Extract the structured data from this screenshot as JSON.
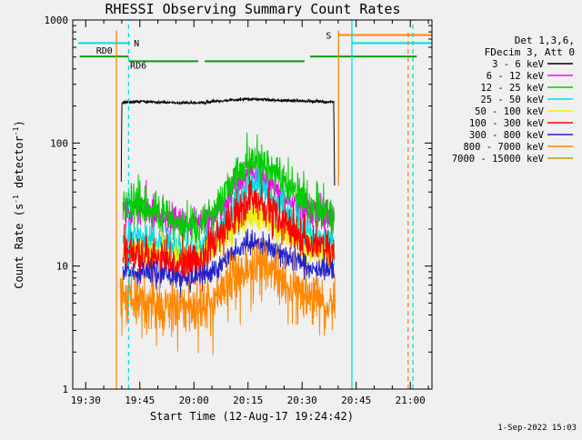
{
  "meta": {
    "background": "#f0f0f0"
  },
  "title": "RHESSI Observing Summary Count Rates",
  "timestamp": "1-Sep-2022 15:03",
  "legend": {
    "line1": "Det 1,3,6,",
    "line2": "FDecim 3, Att 0",
    "entries": [
      {
        "label": "3 - 6 keV",
        "color": "#000000"
      },
      {
        "label": "6 - 12 keV",
        "color": "#ff00ff"
      },
      {
        "label": "12 - 25 keV",
        "color": "#00cc00"
      },
      {
        "label": "25 - 50 keV",
        "color": "#00dede"
      },
      {
        "label": "50 - 100 keV",
        "color": "#efef00"
      },
      {
        "label": "100 - 300 keV",
        "color": "#ff0000"
      },
      {
        "label": "300 - 800 keV",
        "color": "#2222cc"
      },
      {
        "label": "800 - 7000 keV",
        "color": "#ff8800"
      },
      {
        "label": "7000 - 15000 keV",
        "color": "#b5a000"
      }
    ]
  },
  "chart_data": {
    "type": "line",
    "title": "RHESSI Observing Summary Count Rates",
    "xlabel": "Start Time (12-Aug-17 19:24:42)",
    "ylabel": {
      "text": "Count Rate (s-1 detector-1)",
      "pre": "Count Rate (s",
      "sup1": "-1",
      "mid": " detector",
      "sup2": "-1",
      "post": ")"
    },
    "x_hours_range": [
      19.44,
      21.1
    ],
    "x_ticks": [
      {
        "h": 19.5,
        "label": "19:30"
      },
      {
        "h": 19.75,
        "label": "19:45"
      },
      {
        "h": 20.0,
        "label": "20:00"
      },
      {
        "h": 20.25,
        "label": "20:15"
      },
      {
        "h": 20.5,
        "label": "20:30"
      },
      {
        "h": 20.75,
        "label": "20:45"
      },
      {
        "h": 21.0,
        "label": "21:00"
      }
    ],
    "x_minor_step_minutes": 5,
    "y_log_range": [
      1,
      1000
    ],
    "y_ticks": [
      1,
      10,
      100,
      1000
    ],
    "grid": false,
    "legend_position": "right-outside",
    "series": [
      {
        "name": "3 - 6 keV",
        "color": "#000000",
        "sigma": 0.006,
        "points": [
          [
            19.664,
            48
          ],
          [
            19.667,
            212
          ],
          [
            19.75,
            218
          ],
          [
            19.85,
            214
          ],
          [
            19.95,
            212
          ],
          [
            20.05,
            214
          ],
          [
            20.15,
            222
          ],
          [
            20.25,
            228
          ],
          [
            20.35,
            224
          ],
          [
            20.45,
            221
          ],
          [
            20.55,
            218
          ],
          [
            20.646,
            215
          ],
          [
            20.65,
            46
          ]
        ]
      },
      {
        "name": "6 - 12 keV",
        "color": "#ff00ff",
        "sigma": 0.06,
        "points": [
          [
            19.672,
            27
          ],
          [
            19.75,
            29
          ],
          [
            19.85,
            25
          ],
          [
            19.95,
            22.5
          ],
          [
            20.02,
            22
          ],
          [
            20.1,
            26
          ],
          [
            20.2,
            45
          ],
          [
            20.27,
            58
          ],
          [
            20.33,
            50
          ],
          [
            20.42,
            36
          ],
          [
            20.52,
            29
          ],
          [
            20.6,
            26
          ],
          [
            20.648,
            25
          ]
        ]
      },
      {
        "name": "12 - 25 keV",
        "color": "#00cc00",
        "sigma": 0.085,
        "points": [
          [
            19.672,
            31
          ],
          [
            19.74,
            33
          ],
          [
            19.83,
            27
          ],
          [
            19.95,
            21.5
          ],
          [
            20.02,
            21
          ],
          [
            20.1,
            28
          ],
          [
            20.2,
            58
          ],
          [
            20.27,
            76
          ],
          [
            20.32,
            70
          ],
          [
            20.42,
            48
          ],
          [
            20.52,
            33
          ],
          [
            20.6,
            27
          ],
          [
            20.648,
            25
          ]
        ]
      },
      {
        "name": "25 - 50 keV",
        "color": "#00dede",
        "sigma": 0.07,
        "points": [
          [
            19.672,
            17
          ],
          [
            19.76,
            16.5
          ],
          [
            19.88,
            14.5
          ],
          [
            19.99,
            13.5
          ],
          [
            20.08,
            15.5
          ],
          [
            20.18,
            28
          ],
          [
            20.27,
            46
          ],
          [
            20.33,
            40
          ],
          [
            20.42,
            28
          ],
          [
            20.52,
            19
          ],
          [
            20.6,
            16
          ],
          [
            20.648,
            15
          ]
        ]
      },
      {
        "name": "50 - 100 keV",
        "color": "#efef00",
        "sigma": 0.06,
        "points": [
          [
            19.672,
            13.5
          ],
          [
            19.78,
            13
          ],
          [
            19.95,
            11.5
          ],
          [
            20.05,
            12.5
          ],
          [
            20.15,
            18
          ],
          [
            20.27,
            27
          ],
          [
            20.34,
            23
          ],
          [
            20.44,
            17
          ],
          [
            20.54,
            13.5
          ],
          [
            20.648,
            12.5
          ]
        ]
      },
      {
        "name": "100 - 300 keV",
        "color": "#ff0000",
        "sigma": 0.09,
        "points": [
          [
            19.672,
            13
          ],
          [
            19.78,
            12
          ],
          [
            19.95,
            10.5
          ],
          [
            20.05,
            12
          ],
          [
            20.15,
            21
          ],
          [
            20.27,
            36
          ],
          [
            20.34,
            30
          ],
          [
            20.44,
            20
          ],
          [
            20.54,
            14.5
          ],
          [
            20.648,
            13
          ]
        ]
      },
      {
        "name": "300 - 800 keV",
        "color": "#2222cc",
        "sigma": 0.05,
        "points": [
          [
            19.672,
            9
          ],
          [
            19.8,
            8.6
          ],
          [
            19.97,
            7.8
          ],
          [
            20.07,
            8.4
          ],
          [
            20.17,
            12
          ],
          [
            20.27,
            16.5
          ],
          [
            20.35,
            14.5
          ],
          [
            20.45,
            11.5
          ],
          [
            20.55,
            9.4
          ],
          [
            20.648,
            8.8
          ]
        ]
      },
      {
        "name": "800 - 7000 keV",
        "color": "#ff8800",
        "sigma": 0.11,
        "spike_p": 0.04,
        "spike_f": 0.55,
        "points": [
          [
            19.66,
            5.6
          ],
          [
            19.8,
            5.1
          ],
          [
            19.97,
            4.4
          ],
          [
            20.07,
            5.0
          ],
          [
            20.17,
            7.5
          ],
          [
            20.27,
            10.8
          ],
          [
            20.35,
            9.3
          ],
          [
            20.45,
            6.8
          ],
          [
            20.55,
            5.4
          ],
          [
            20.652,
            5.0
          ]
        ]
      },
      {
        "name": "7000 - 15000 keV",
        "color": "#b5a000",
        "sigma": 0.05,
        "points": []
      }
    ],
    "flags": [
      {
        "label": "N",
        "color": "#00dede",
        "value": 650,
        "segments": [
          [
            19.465,
            19.705
          ],
          [
            20.73,
            21.2
          ]
        ],
        "label_pos": [
          19.722,
          640
        ]
      },
      {
        "label": "S",
        "color": "#ff8800",
        "value": 755,
        "segments": [
          [
            20.668,
            21.2
          ]
        ],
        "label_pos": [
          20.61,
          745
        ]
      },
      {
        "label": "RD0",
        "color": "#119911",
        "value": 505,
        "segments": [
          [
            19.472,
            19.698
          ],
          [
            20.537,
            21.03
          ]
        ],
        "label_pos": [
          19.548,
          560
        ]
      },
      {
        "label": "RD6",
        "color": "#119911",
        "value": 462,
        "segments": [
          [
            19.698,
            20.02
          ],
          [
            20.05,
            20.511
          ]
        ],
        "label_pos": [
          19.705,
          425
        ]
      }
    ],
    "vlines": [
      {
        "t": 19.642,
        "color": "#ff8800",
        "dashed": false,
        "v": [
          1,
          820
        ]
      },
      {
        "t": 19.698,
        "color": "#00dede",
        "dashed": true,
        "v": [
          1,
          1000
        ]
      },
      {
        "t": 20.668,
        "color": "#ff8800",
        "dashed": false,
        "v": [
          45,
          820
        ]
      },
      {
        "t": 20.73,
        "color": "#00dede",
        "dashed": false,
        "v": [
          1,
          1000
        ]
      },
      {
        "t": 20.99,
        "color": "#ff8800",
        "dashed": true,
        "v": [
          1,
          820
        ]
      },
      {
        "t": 21.012,
        "color": "#00dede",
        "dashed": true,
        "v": [
          1,
          1000
        ]
      }
    ]
  }
}
